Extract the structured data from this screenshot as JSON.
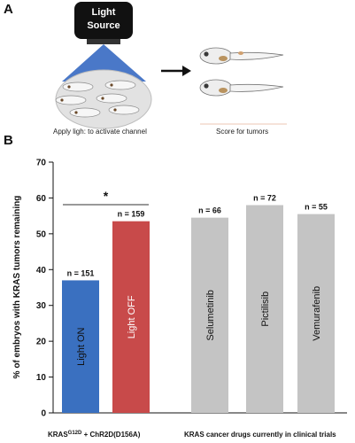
{
  "panel_a": {
    "letter": "A",
    "light_line1": "Light",
    "light_line2": "Source",
    "caption_left": "Apply ligh: to activate channel",
    "caption_right": "Score for tumors"
  },
  "panel_b": {
    "letter": "B"
  },
  "colors": {
    "blue": "#3a70c0",
    "red": "#c84a4a",
    "gray": "#c4c4c4",
    "light_cone": "#4a78c8"
  },
  "chart_data": {
    "type": "bar",
    "ylabel": "% of embryos with KRAS tumors remaining",
    "ylim": [
      0,
      70
    ],
    "yticks": [
      0,
      10,
      20,
      30,
      40,
      50,
      60,
      70
    ],
    "bars": [
      {
        "label": "Light ON",
        "value": 37,
        "n_label": "n = 151",
        "color": "#3a70c0",
        "text_color": "#111111"
      },
      {
        "label": "Light OFF",
        "value": 53.5,
        "n_label": "n = 159",
        "color": "#c84a4a",
        "text_color": "#ffffff"
      },
      {
        "label": "Selumetinib",
        "value": 54.5,
        "n_label": "n = 66",
        "color": "#c4c4c4",
        "text_color": "#111111"
      },
      {
        "label": "Pictilisib",
        "value": 58,
        "n_label": "n = 72",
        "color": "#c4c4c4",
        "text_color": "#111111"
      },
      {
        "label": "Vemurafenib",
        "value": 55.5,
        "n_label": "n = 55",
        "color": "#c4c4c4",
        "text_color": "#111111"
      }
    ],
    "significance": {
      "marker": "*"
    },
    "group_labels": [
      {
        "main": "KRAS",
        "sup": "G12D",
        "rest": " + ChR2D(D156A)"
      },
      {
        "main": "KRAS cancer drugs currently in clinical trials"
      }
    ]
  }
}
